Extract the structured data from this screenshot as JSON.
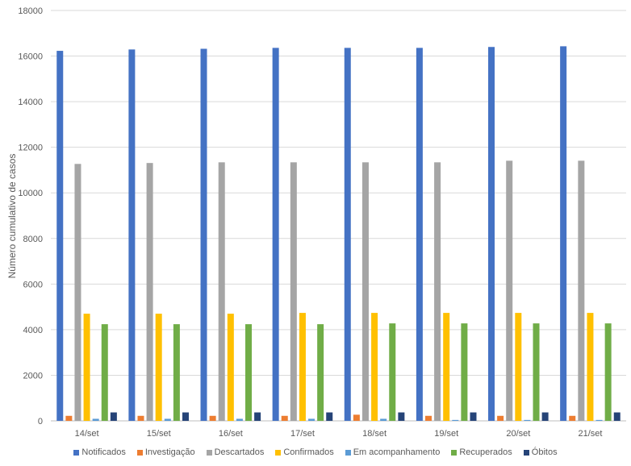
{
  "chart_data": {
    "type": "bar",
    "title": "",
    "xlabel": "",
    "ylabel": "Número cumulativo de casos",
    "ylim": [
      0,
      18000
    ],
    "yticks": [
      0,
      2000,
      4000,
      6000,
      8000,
      10000,
      12000,
      14000,
      16000,
      18000
    ],
    "grid": true,
    "legend_position": "bottom",
    "categories": [
      "14/set",
      "15/set",
      "16/set",
      "17/set",
      "18/set",
      "19/set",
      "20/set",
      "21/set"
    ],
    "series": [
      {
        "name": "Notificados",
        "color": "#4472C4",
        "values": [
          16230,
          16290,
          16320,
          16360,
          16360,
          16360,
          16400,
          16430
        ]
      },
      {
        "name": "Investigação",
        "color": "#ED7D31",
        "values": [
          220,
          220,
          220,
          220,
          270,
          220,
          220,
          220
        ]
      },
      {
        "name": "Descartados",
        "color": "#A5A5A5",
        "values": [
          11270,
          11310,
          11340,
          11340,
          11340,
          11340,
          11410,
          11410
        ]
      },
      {
        "name": "Confirmados",
        "color": "#FFC000",
        "values": [
          4700,
          4700,
          4700,
          4735,
          4735,
          4735,
          4735,
          4735
        ]
      },
      {
        "name": "Em acompanhamento",
        "color": "#5B9BD5",
        "values": [
          90,
          90,
          90,
          90,
          90,
          40,
          40,
          40
        ]
      },
      {
        "name": "Recuperados",
        "color": "#70AD47",
        "values": [
          4240,
          4240,
          4240,
          4240,
          4275,
          4275,
          4275,
          4275
        ]
      },
      {
        "name": "Óbitos",
        "color": "#264478",
        "values": [
          370,
          370,
          370,
          370,
          370,
          370,
          370,
          370
        ]
      }
    ]
  }
}
